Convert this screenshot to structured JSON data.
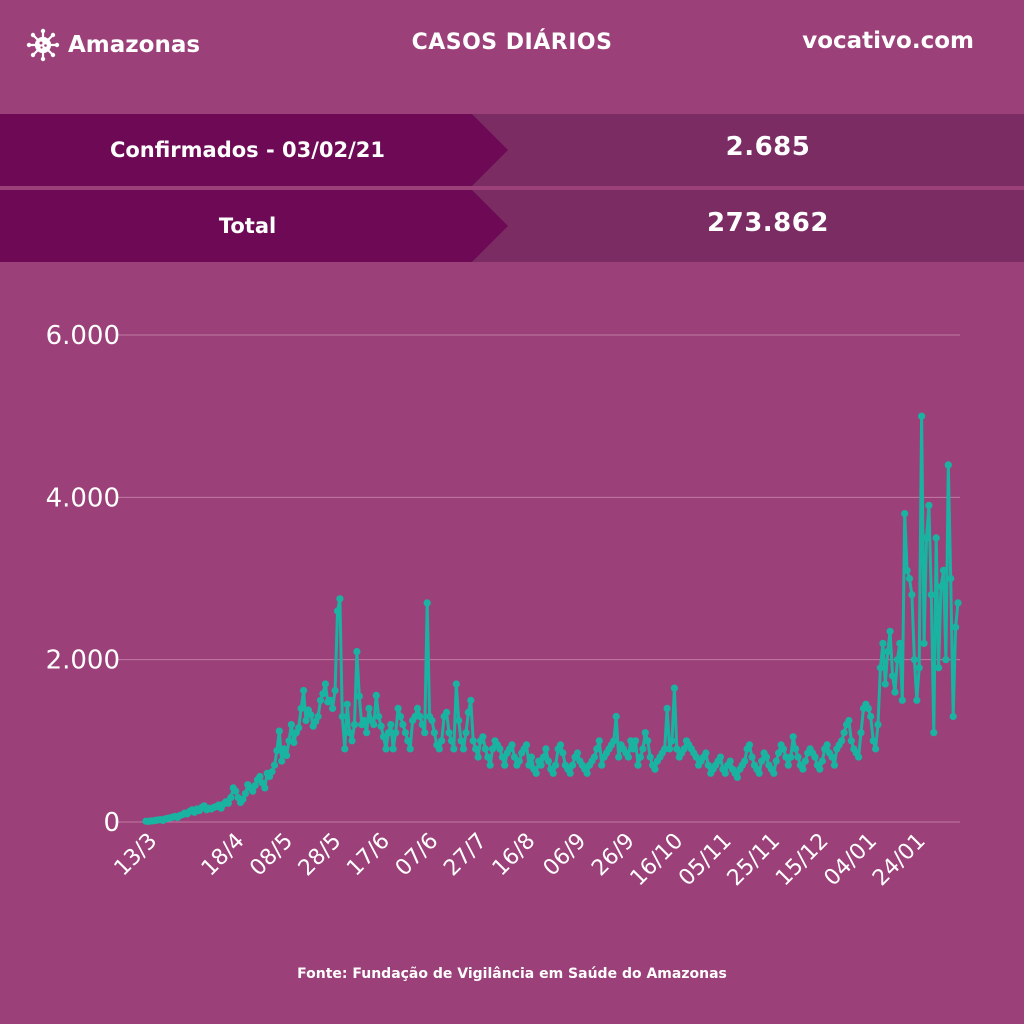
{
  "header": {
    "brand": "Amazonas",
    "brand_icon": "virus-icon",
    "title": "CASOS DIÁRIOS",
    "site": "vocativo.com"
  },
  "stats": [
    {
      "label": "Confirmados - 03/02/21",
      "value": "2.685"
    },
    {
      "label": "Total",
      "value": "273.862"
    }
  ],
  "colors": {
    "background": "#9b4078",
    "label_band": "#6e0a55",
    "value_band": "#7a2c63",
    "line": "#1ab3a2"
  },
  "chart_data": {
    "type": "line",
    "title": "",
    "xlabel": "",
    "ylabel": "",
    "ylim": [
      0,
      6000
    ],
    "yticks": [
      0,
      2000,
      4000,
      6000
    ],
    "ytick_labels": [
      "0",
      "2.000",
      "4.000",
      "6.000"
    ],
    "grid": true,
    "legend": "none",
    "xticks": [
      {
        "label": "13/3",
        "index": 0
      },
      {
        "label": "18/4",
        "index": 36
      },
      {
        "label": "08/5",
        "index": 56
      },
      {
        "label": "28/5",
        "index": 76
      },
      {
        "label": "17/6",
        "index": 96
      },
      {
        "label": "07/6",
        "index": 116
      },
      {
        "label": "27/7",
        "index": 136
      },
      {
        "label": "16/8",
        "index": 156
      },
      {
        "label": "06/9",
        "index": 177
      },
      {
        "label": "26/9",
        "index": 197
      },
      {
        "label": "16/10",
        "index": 217
      },
      {
        "label": "05/11",
        "index": 237
      },
      {
        "label": "25/11",
        "index": 257
      },
      {
        "label": "15/12",
        "index": 277
      },
      {
        "label": "04/01",
        "index": 297
      },
      {
        "label": "24/01",
        "index": 317
      }
    ],
    "series": [
      {
        "values": [
          10,
          8,
          12,
          15,
          20,
          25,
          30,
          20,
          40,
          45,
          50,
          60,
          70,
          55,
          80,
          90,
          110,
          100,
          130,
          150,
          120,
          160,
          140,
          180,
          200,
          150,
          170,
          160,
          180,
          190,
          210,
          170,
          220,
          250,
          230,
          300,
          420,
          380,
          300,
          240,
          280,
          350,
          460,
          420,
          380,
          450,
          520,
          560,
          480,
          420,
          600,
          560,
          620,
          700,
          880,
          1120,
          750,
          900,
          820,
          1000,
          1200,
          980,
          1100,
          1160,
          1400,
          1620,
          1250,
          1380,
          1320,
          1180,
          1240,
          1300,
          1500,
          1580,
          1700,
          1480,
          1500,
          1400,
          1620,
          2600,
          2750,
          1300,
          900,
          1450,
          1100,
          1000,
          1200,
          2100,
          1550,
          1200,
          1250,
          1100,
          1400,
          1250,
          1200,
          1560,
          1300,
          1180,
          1050,
          900,
          1100,
          1200,
          900,
          1100,
          1400,
          1300,
          1200,
          1100,
          1000,
          900,
          1250,
          1300,
          1400,
          1300,
          1200,
          1100,
          2700,
          1300,
          1250,
          1100,
          950,
          900,
          1000,
          1300,
          1350,
          1100,
          1000,
          900,
          1700,
          1250,
          1000,
          900,
          1100,
          1350,
          1500,
          1000,
          900,
          800,
          1000,
          1050,
          900,
          800,
          700,
          900,
          1000,
          950,
          900,
          800,
          700,
          850,
          900,
          950,
          800,
          700,
          750,
          850,
          900,
          950,
          700,
          800,
          650,
          600,
          750,
          700,
          800,
          900,
          750,
          650,
          600,
          700,
          900,
          950,
          850,
          700,
          650,
          600,
          700,
          800,
          850,
          750,
          700,
          650,
          600,
          700,
          750,
          800,
          900,
          1000,
          700,
          800,
          850,
          900,
          950,
          1000,
          1300,
          800,
          950,
          900,
          850,
          800,
          1000,
          900,
          1000,
          700,
          800,
          900,
          1100,
          1000,
          800,
          700,
          650,
          750,
          800,
          850,
          900,
          1400,
          900,
          1000,
          1650,
          900,
          800,
          850,
          900,
          1000,
          950,
          900,
          850,
          800,
          700,
          750,
          800,
          850,
          700,
          600,
          650,
          700,
          750,
          800,
          650,
          600,
          700,
          750,
          650,
          600,
          550,
          650,
          700,
          750,
          900,
          950,
          800,
          700,
          650,
          600,
          750,
          850,
          800,
          700,
          650,
          600,
          750,
          850,
          950,
          900,
          800,
          700,
          800,
          1050,
          900,
          800,
          700,
          650,
          750,
          850,
          900,
          850,
          800,
          700,
          650,
          750,
          900,
          950,
          850,
          800,
          700,
          900,
          950,
          1000,
          1100,
          1200,
          1250,
          1000,
          900,
          850,
          800,
          1100,
          1400,
          1450,
          1400,
          1300,
          1000,
          900,
          1200,
          1900,
          2200,
          1700,
          2100,
          2350,
          1800,
          1600,
          2000,
          2200,
          1500,
          3800,
          3100,
          3000,
          2800,
          2000,
          1500,
          1900,
          5000,
          2200,
          3500,
          3900,
          2800,
          1100,
          3500,
          1900,
          2900,
          3100,
          2000,
          4400,
          3000,
          1300,
          2400,
          2700
        ]
      }
    ]
  },
  "source": "Fonte: Fundação de Vigilância em Saúde do Amazonas"
}
